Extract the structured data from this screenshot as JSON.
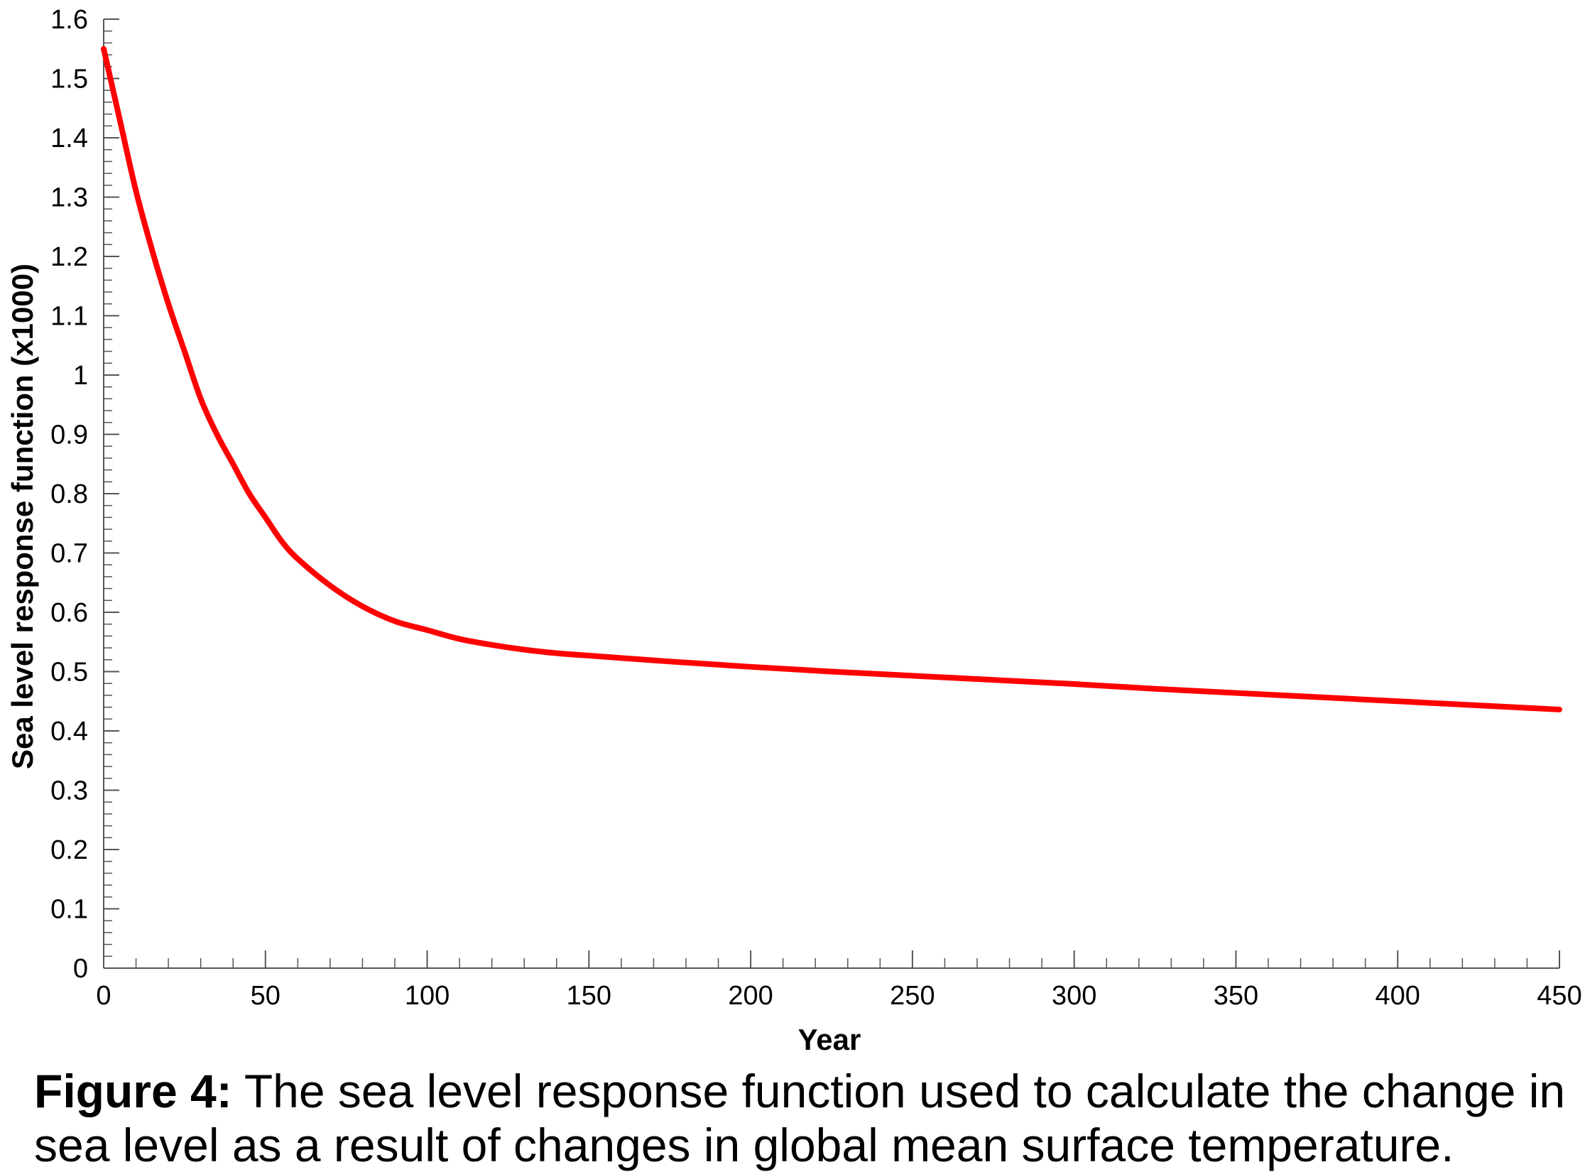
{
  "chart_data": {
    "type": "line",
    "title": "",
    "xlabel": "Year",
    "ylabel": "Sea level response function (x1000)",
    "xlim": [
      0,
      450
    ],
    "ylim": [
      0,
      1.6
    ],
    "x_ticks": [
      0,
      50,
      100,
      150,
      200,
      250,
      300,
      350,
      400,
      450
    ],
    "x_tick_labels": [
      "0",
      "50",
      "100",
      "150",
      "200",
      "250",
      "300",
      "350",
      "400",
      "450"
    ],
    "y_ticks": [
      0,
      0.1,
      0.2,
      0.3,
      0.4,
      0.5,
      0.6,
      0.7,
      0.8,
      0.9,
      1,
      1.1,
      1.2,
      1.3,
      1.4,
      1.5,
      1.6
    ],
    "y_tick_labels": [
      "0",
      "0.1",
      "0.2",
      "0.3",
      "0.4",
      "0.5",
      "0.6",
      "0.7",
      "0.8",
      "0.9",
      "1",
      "1.1",
      "1.2",
      "1.3",
      "1.4",
      "1.5",
      "1.6"
    ],
    "x_minor_step": 10,
    "y_minor_step": 0.02,
    "grid": false,
    "series": [
      {
        "color": "#ff0000",
        "x": [
          0,
          5,
          10,
          15,
          20,
          25,
          30,
          35,
          40,
          45,
          50,
          55,
          60,
          70,
          80,
          90,
          100,
          110,
          120,
          130,
          140,
          150,
          175,
          200,
          225,
          250,
          275,
          300,
          325,
          350,
          375,
          400,
          425,
          450
        ],
        "y": [
          1.55,
          1.43,
          1.31,
          1.21,
          1.12,
          1.04,
          0.96,
          0.9,
          0.85,
          0.8,
          0.76,
          0.72,
          0.69,
          0.645,
          0.61,
          0.585,
          0.57,
          0.555,
          0.545,
          0.537,
          0.531,
          0.527,
          0.517,
          0.508,
          0.5,
          0.493,
          0.486,
          0.479,
          0.471,
          0.464,
          0.457,
          0.45,
          0.443,
          0.436
        ]
      }
    ]
  },
  "caption": {
    "label": "Figure 4:",
    "text": " The sea level response function used to calculate the change in sea level as a result of changes in global mean surface temperature."
  }
}
